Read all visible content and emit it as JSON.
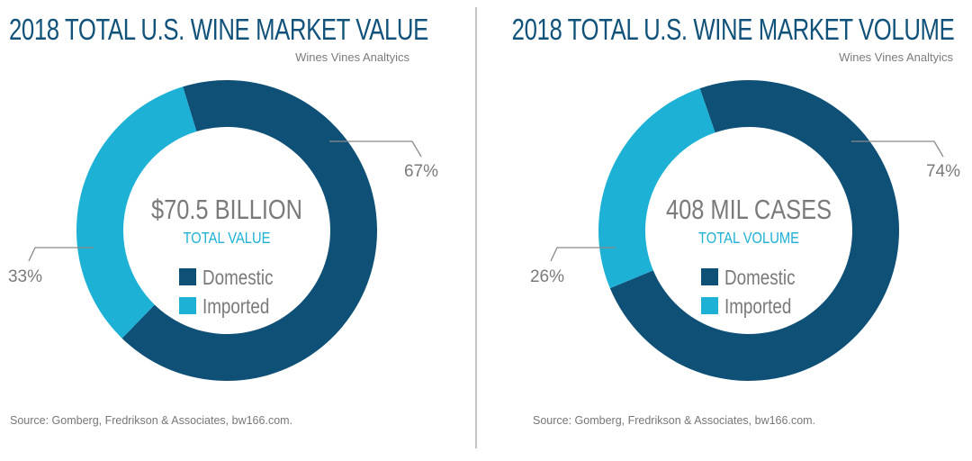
{
  "colors": {
    "domestic": "#0f5077",
    "imported": "#1db1d6",
    "title": "#11527a",
    "center_text": "#7a7a7a",
    "center_sub": "#1db1d6",
    "leader": "#8a8a8a",
    "divider": "#c4c4c4"
  },
  "chart_data": [
    {
      "type": "pie",
      "variant": "donut",
      "title": "2018 TOTAL U.S. WINE MARKET VALUE",
      "subtitle": "Wines Vines Analtyics",
      "center_value": "$70.5 BILLION",
      "center_label": "TOTAL VALUE",
      "categories": [
        "Domestic",
        "Imported"
      ],
      "values": [
        67,
        33
      ],
      "unit": "%",
      "data_labels": [
        "67%",
        "33%"
      ],
      "legend": [
        "Domestic",
        "Imported"
      ],
      "legend_position": "center",
      "source": "Source: Gomberg, Fredrikson & Associates, bw166.com."
    },
    {
      "type": "pie",
      "variant": "donut",
      "title": "2018 TOTAL U.S. WINE MARKET VOLUME",
      "subtitle": "Wines Vines Analtyics",
      "center_value": "408 MIL CASES",
      "center_label": "TOTAL VOLUME",
      "categories": [
        "Domestic",
        "Imported"
      ],
      "values": [
        74,
        26
      ],
      "unit": "%",
      "data_labels": [
        "74%",
        "26%"
      ],
      "legend": [
        "Domestic",
        "Imported"
      ],
      "legend_position": "center",
      "source": "Source: Gomberg, Fredrikson & Associates, bw166.com."
    }
  ]
}
